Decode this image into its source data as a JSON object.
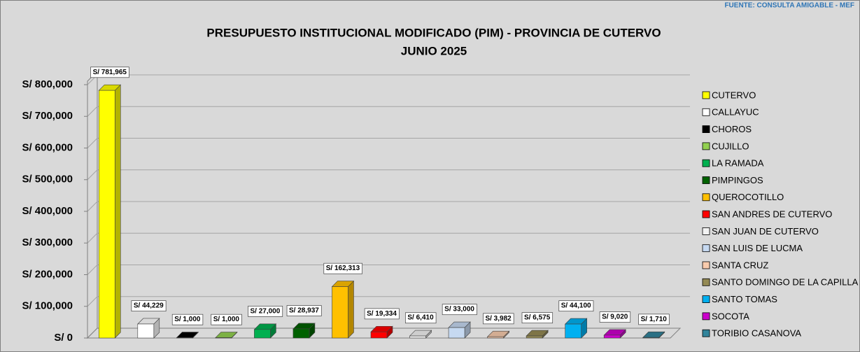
{
  "source": "FUENTE:  CONSULTA AMIGABLE  -  MEF",
  "chart_data": {
    "type": "bar3d",
    "title": "PRESUPUESTO INSTITUCIONAL MODIFICADO (PIM) - PROVINCIA DE CUTERVO",
    "subtitle": "JUNIO 2025",
    "categories": [
      "CUTERVO",
      "CALLAYUC",
      "CHOROS",
      "CUJILLO",
      "LA RAMADA",
      "PIMPINGOS",
      "QUEROCOTILLO",
      "SAN ANDRES DE CUTERVO",
      "SAN JUAN DE CUTERVO",
      "SAN LUIS DE LUCMA",
      "SANTA CRUZ",
      "SANTO DOMINGO DE LA CAPILLA",
      "SANTO TOMAS",
      "SOCOTA",
      "TORIBIO CASANOVA"
    ],
    "values": [
      781965,
      44229,
      1000,
      1000,
      27000,
      28937,
      162313,
      19334,
      6410,
      33000,
      3982,
      6575,
      44100,
      9020,
      1710
    ],
    "value_labels": [
      "S/ 781,965",
      "S/ 44,229",
      "S/ 1,000",
      "S/ 1,000",
      "S/ 27,000",
      "S/ 28,937",
      "S/ 162,313",
      "S/ 19,334",
      "S/ 6,410",
      "S/ 33,000",
      "S/ 3,982",
      "S/ 6,575",
      "S/ 44,100",
      "S/ 9,020",
      "S/ 1,710"
    ],
    "colors": [
      "#ffff00",
      "#ffffff",
      "#000000",
      "#92d050",
      "#00b050",
      "#006100",
      "#ffc000",
      "#ff0000",
      "#f2f2f2",
      "#c6d9f1",
      "#f8cbad",
      "#948a54",
      "#00b0f0",
      "#cc00cc",
      "#31849b"
    ],
    "ylim": [
      0,
      800000
    ],
    "yticks": [
      {
        "value": 0,
        "label": "S/ 0"
      },
      {
        "value": 100000,
        "label": "S/ 100,000"
      },
      {
        "value": 200000,
        "label": "S/ 200,000"
      },
      {
        "value": 300000,
        "label": "S/ 300,000"
      },
      {
        "value": 400000,
        "label": "S/ 400,000"
      },
      {
        "value": 500000,
        "label": "S/ 500,000"
      },
      {
        "value": 600000,
        "label": "S/ 600,000"
      },
      {
        "value": 700000,
        "label": "S/ 700,000"
      },
      {
        "value": 800000,
        "label": "S/ 800,000"
      }
    ],
    "grid": true,
    "legend": "right"
  }
}
